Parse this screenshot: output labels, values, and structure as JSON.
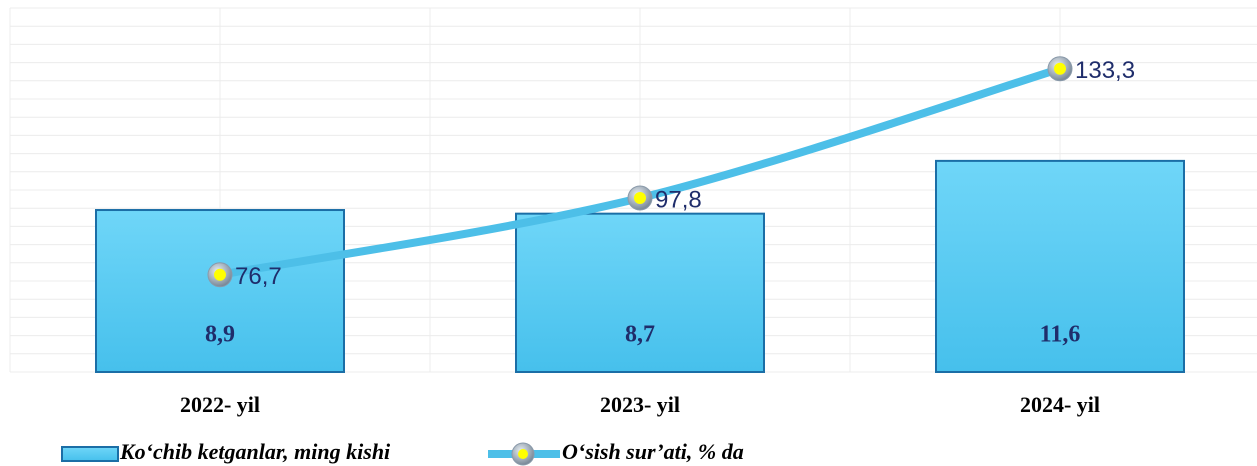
{
  "chart_data": {
    "type": "bar-line",
    "categories": [
      "2022- yil",
      "2023- yil",
      "2024- yil"
    ],
    "series": [
      {
        "name": "Ko‘chib ketganlar, ming kishi",
        "type": "bar",
        "color": "#52c9f2",
        "values": [
          8.9,
          8.7,
          11.6
        ],
        "value_labels": [
          "8,9",
          "8,7",
          "11,6"
        ]
      },
      {
        "name": "O‘sish sur’ati, % da",
        "type": "line",
        "axis": "y2",
        "color": "#4dbfe8",
        "values": [
          76.7,
          97.8,
          133.3
        ],
        "value_labels": [
          "76,7",
          "97,8",
          "133,3"
        ]
      }
    ],
    "ylim": [
      0,
      20
    ],
    "yticks": [
      0,
      1,
      2,
      3,
      4,
      5,
      6,
      7,
      8,
      9,
      10,
      11,
      12,
      13,
      14,
      15,
      16,
      17,
      18,
      19,
      20
    ],
    "y2lim": [
      50,
      150
    ],
    "grid": true,
    "legend": "bottom"
  }
}
